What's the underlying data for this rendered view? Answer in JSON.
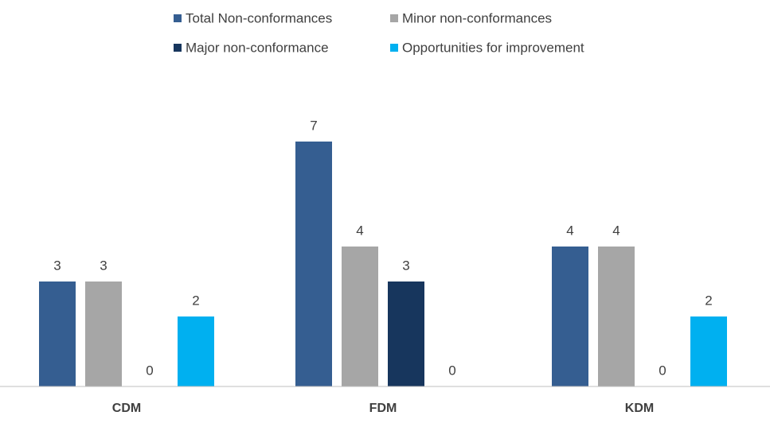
{
  "chart_data": {
    "type": "bar",
    "categories": [
      "CDM",
      "FDM",
      "KDM"
    ],
    "series": [
      {
        "name": "Total Non-conformances",
        "values": [
          3,
          7,
          4
        ],
        "color": "#355E91"
      },
      {
        "name": "Minor non-conformances",
        "values": [
          3,
          4,
          4
        ],
        "color": "#A6A6A6"
      },
      {
        "name": "Major non-conformance",
        "values": [
          0,
          3,
          0
        ],
        "color": "#17365D"
      },
      {
        "name": "Opportunities for improvement",
        "values": [
          2,
          0,
          2
        ],
        "color": "#00B0F0"
      }
    ],
    "title": "",
    "xlabel": "",
    "ylabel": "",
    "ylim": [
      0,
      7
    ],
    "grid": false,
    "data_labels": true,
    "legend_position": "top"
  }
}
